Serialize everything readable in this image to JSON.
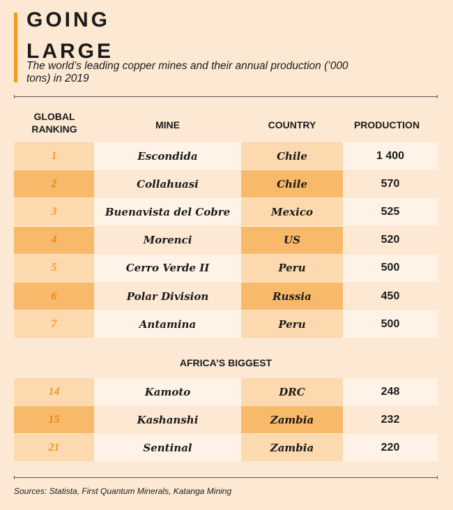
{
  "header": {
    "title_line1": "GOING",
    "title_line2": "LARGE",
    "subtitle": "The world’s leading copper mines and their annual production (’000 tons) in 2019"
  },
  "table": {
    "col_headers": [
      "GLOBAL RANKING",
      "MINE",
      "COUNTRY",
      "PRODUCTION"
    ]
  },
  "section_label": "AFRICA’S BIGGEST",
  "source": "Sources: Statista, First Quantum Minerals, Katanga Mining",
  "colors": {
    "accent": "#f29a1f",
    "background": "#fde9d3",
    "row_dark": "#f8b96a",
    "row_light": "#fcd9ae"
  },
  "chart_data": {
    "type": "table",
    "title": "GOING LARGE",
    "subtitle": "The world’s leading copper mines and their annual production (’000 tons) in 2019",
    "columns": [
      "GLOBAL RANKING",
      "MINE",
      "COUNTRY",
      "PRODUCTION"
    ],
    "rows": [
      [
        "1",
        "Escondida",
        "Chile",
        "1 400"
      ],
      [
        "2",
        "Collahuasi",
        "Chile",
        "570"
      ],
      [
        "3",
        "Buenavista del Cobre",
        "Mexico",
        "525"
      ],
      [
        "4",
        "Morenci",
        "US",
        "520"
      ],
      [
        "5",
        "Cerro Verde II",
        "Peru",
        "500"
      ],
      [
        "6",
        "Polar Division",
        "Russia",
        "450"
      ],
      [
        "7",
        "Antamina",
        "Peru",
        "500"
      ]
    ],
    "africa_rows": [
      [
        "14",
        "Kamoto",
        "DRC",
        "248"
      ],
      [
        "15",
        "Kashanshi",
        "Zambia",
        "232"
      ],
      [
        "21",
        "Sentinal",
        "Zambia",
        "220"
      ]
    ]
  }
}
